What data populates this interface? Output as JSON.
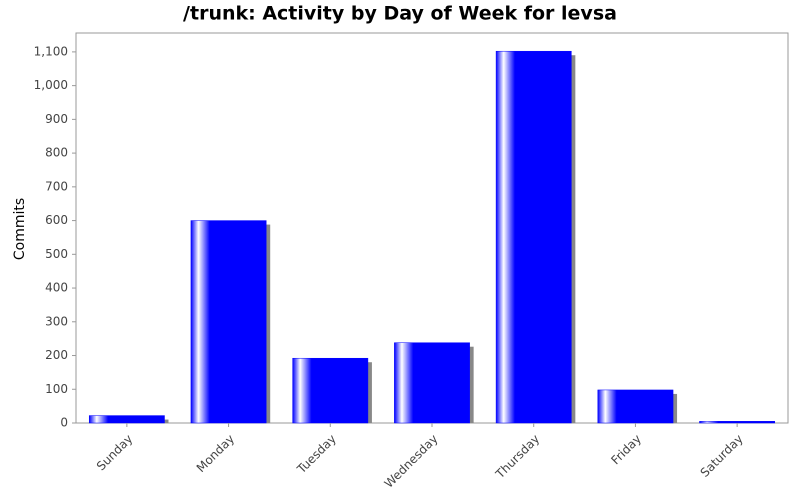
{
  "chart_data": {
    "type": "bar",
    "title": "/trunk: Activity by Day of Week for levsa",
    "y_label": "Commits",
    "categories": [
      "Sunday",
      "Monday",
      "Tuesday",
      "Wednesday",
      "Thursday",
      "Friday",
      "Saturday"
    ],
    "values": [
      22,
      600,
      192,
      238,
      1102,
      98,
      5
    ],
    "color": "#0000ff",
    "ylim": [
      0,
      1156
    ],
    "yticks": [
      0,
      100,
      200,
      300,
      400,
      500,
      600,
      700,
      800,
      900,
      {
        "value": 1000,
        "label": "1,000"
      },
      {
        "value": 1100,
        "label": "1,100"
      }
    ]
  }
}
